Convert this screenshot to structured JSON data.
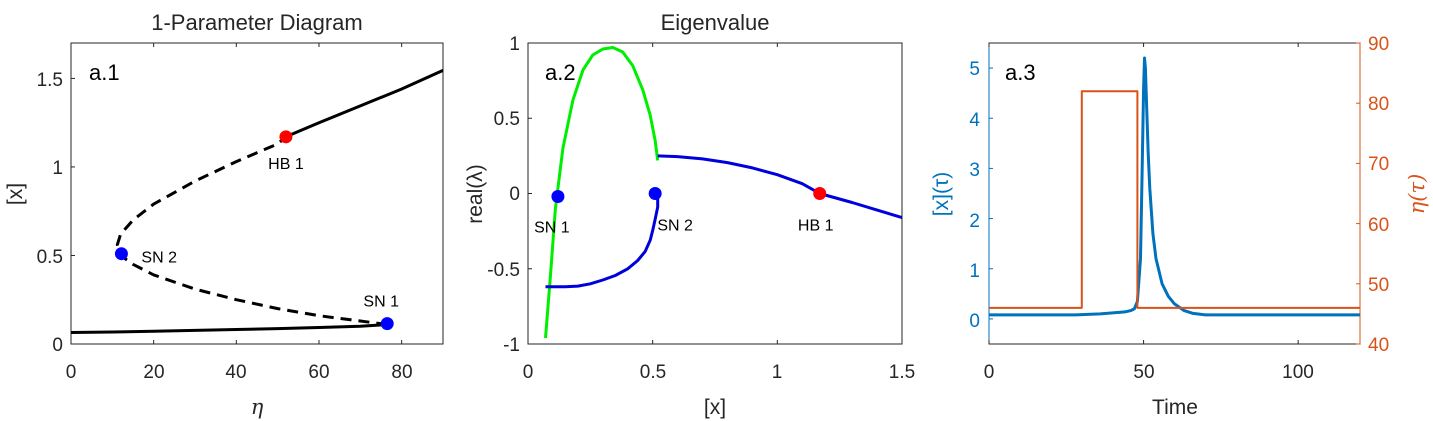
{
  "chart_data": [
    {
      "type": "line",
      "title": "1-Parameter Diagram",
      "panel_label": "a.1",
      "xlabel": "η",
      "ylabel": "[x]",
      "xlim": [
        0,
        90
      ],
      "ylim": [
        0,
        1.7
      ],
      "xticks": [
        "0",
        "20",
        "40",
        "60",
        "80"
      ],
      "yticks": [
        "0",
        "0.5",
        "1",
        "1.5"
      ],
      "grid": false,
      "series": [
        {
          "style": "solid",
          "color": "#000000",
          "x": [
            0,
            10,
            20,
            30,
            40,
            50,
            60,
            70,
            76.5
          ],
          "y": [
            0.065,
            0.068,
            0.072,
            0.077,
            0.082,
            0.087,
            0.093,
            0.1,
            0.11
          ]
        },
        {
          "style": "dashed",
          "color": "#000000",
          "x": [
            76.5,
            70,
            60,
            50,
            40,
            30,
            20,
            15,
            12,
            11.2,
            12,
            15,
            20,
            30,
            40,
            50,
            52
          ],
          "y": [
            0.11,
            0.13,
            0.16,
            0.2,
            0.25,
            0.31,
            0.39,
            0.45,
            0.5,
            0.56,
            0.62,
            0.7,
            0.79,
            0.92,
            1.03,
            1.13,
            1.17
          ]
        },
        {
          "style": "solid",
          "color": "#000000",
          "x": [
            52,
            60,
            70,
            80,
            90
          ],
          "y": [
            1.17,
            1.25,
            1.345,
            1.44,
            1.545
          ]
        }
      ],
      "points": [
        {
          "label": "HB 1",
          "x": 52,
          "y": 1.17,
          "color": "#ff0000",
          "label_pos": "below"
        },
        {
          "label": "SN 2",
          "x": 12.2,
          "y": 0.51,
          "color": "#0000ff",
          "label_pos": "right"
        },
        {
          "label": "SN 1",
          "x": 76.5,
          "y": 0.115,
          "color": "#0000ff",
          "label_pos": "above"
        }
      ]
    },
    {
      "type": "line",
      "title": "Eigenvalue",
      "panel_label": "a.2",
      "xlabel": "[x]",
      "ylabel": "real(λ)",
      "xlim": [
        0,
        1.5
      ],
      "ylim": [
        -1,
        1
      ],
      "xticks": [
        "0",
        "0.5",
        "1",
        "1.5"
      ],
      "yticks": [
        "-1",
        "-0.5",
        "0",
        "0.5",
        "1"
      ],
      "grid": false,
      "series": [
        {
          "color": "#00ee00",
          "x": [
            0.07,
            0.09,
            0.11,
            0.14,
            0.18,
            0.22,
            0.26,
            0.3,
            0.34,
            0.38,
            0.42,
            0.46,
            0.49,
            0.51,
            0.52
          ],
          "y": [
            -0.96,
            -0.55,
            -0.1,
            0.3,
            0.62,
            0.82,
            0.92,
            0.96,
            0.97,
            0.94,
            0.85,
            0.69,
            0.52,
            0.35,
            0.22
          ]
        },
        {
          "color": "#0000dd",
          "x": [
            0.07,
            0.1,
            0.15,
            0.2,
            0.25,
            0.3,
            0.35,
            0.4,
            0.44,
            0.47,
            0.49,
            0.5,
            0.51,
            0.52,
            0.52
          ],
          "y": [
            -0.62,
            -0.62,
            -0.62,
            -0.615,
            -0.6,
            -0.575,
            -0.545,
            -0.5,
            -0.445,
            -0.385,
            -0.31,
            -0.245,
            -0.17,
            -0.09,
            0.01
          ]
        },
        {
          "color": "#0000dd",
          "x": [
            0.52,
            0.6,
            0.7,
            0.8,
            0.9,
            1.0,
            1.1,
            1.17,
            1.3,
            1.4,
            1.5
          ],
          "y": [
            0.25,
            0.245,
            0.23,
            0.205,
            0.17,
            0.125,
            0.065,
            0.0,
            -0.06,
            -0.11,
            -0.16
          ]
        }
      ],
      "points": [
        {
          "label": "SN 1",
          "x": 0.12,
          "y": -0.02,
          "color": "#0000ff",
          "label_pos": "below"
        },
        {
          "label": "SN 2",
          "x": 0.51,
          "y": 0.0,
          "color": "#0000ff",
          "label_pos": "below"
        },
        {
          "label": "HB 1",
          "x": 1.17,
          "y": 0.0,
          "color": "#ff0000",
          "label_pos": "below"
        }
      ]
    },
    {
      "type": "line",
      "panel_label": "a.3",
      "xlabel": "Time",
      "ylabel_left": "[x](τ)",
      "ylabel_right": "η(τ)",
      "xlim": [
        0,
        120
      ],
      "ylim_left": [
        -0.5,
        5.5
      ],
      "ylim_right": [
        40,
        90
      ],
      "xticks": [
        "0",
        "50",
        "100"
      ],
      "yticks_left": [
        "0",
        "1",
        "2",
        "3",
        "4",
        "5"
      ],
      "yticks_right": [
        "40",
        "50",
        "60",
        "70",
        "80",
        "90"
      ],
      "grid": false,
      "left_color": "#0072bd",
      "right_color": "#d95319",
      "series": [
        {
          "name": "[x](τ)",
          "axis": "left",
          "color": "#0072bd",
          "x": [
            0,
            28,
            32,
            36,
            40,
            44,
            46,
            47,
            48,
            49,
            49.5,
            50,
            50.3,
            50.6,
            51,
            51.5,
            52,
            53,
            54,
            56,
            58,
            60,
            63,
            66,
            70,
            80,
            120
          ],
          "y": [
            0.08,
            0.08,
            0.09,
            0.1,
            0.12,
            0.14,
            0.17,
            0.2,
            0.35,
            1.2,
            2.8,
            4.6,
            5.2,
            5.0,
            4.2,
            3.3,
            2.6,
            1.7,
            1.2,
            0.7,
            0.45,
            0.3,
            0.17,
            0.11,
            0.08,
            0.08,
            0.08
          ]
        },
        {
          "name": "η(τ)",
          "axis": "right",
          "color": "#d95319",
          "x": [
            0,
            30,
            30,
            48,
            48,
            120
          ],
          "y": [
            46,
            46,
            82,
            82,
            46,
            46
          ]
        }
      ]
    }
  ]
}
